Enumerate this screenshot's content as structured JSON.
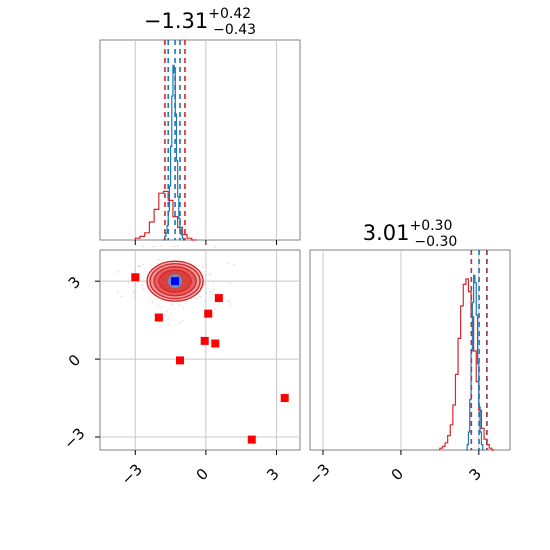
{
  "colors": {
    "blue_hist": "#1f77b4",
    "red": "#d62728",
    "marker_red": "#ff0000",
    "center_blue": "#0000ff",
    "contour_fill": "#e34a4a",
    "grid": "#c8c8c8",
    "frame": "#808080"
  },
  "chart_data": [
    {
      "type": "histogram",
      "panel": "top-left marginal",
      "title": {
        "value": "−1.31",
        "sup": "+0.42",
        "sub": "−0.43"
      },
      "xlim": [
        -4.5,
        4.0
      ],
      "xticks": [
        -3,
        0,
        3
      ],
      "xtick_labels": [
        "−3",
        "0",
        "3"
      ],
      "show_tick_labels": false,
      "grid": true,
      "quantile_lines_blue": [
        -1.6,
        -1.31,
        -1.1
      ],
      "quantile_lines_red": [
        -1.74,
        -0.89
      ],
      "blue_histogram": {
        "bin_start": -1.8,
        "bin_width": 0.05,
        "counts": [
          0,
          0.02,
          0.04,
          0.08,
          0.16,
          0.3,
          0.52,
          0.8,
          0.97,
          0.93,
          0.7,
          0.44,
          0.24,
          0.12,
          0.06,
          0.03,
          0.01,
          0
        ]
      },
      "red_histogram": {
        "bin_start": -3.0,
        "bin_width": 0.2,
        "counts": [
          0.01,
          0.02,
          0.04,
          0.1,
          0.17,
          0.26,
          0.27,
          0.22,
          0.13,
          0.07,
          0.03,
          0.01,
          0
        ]
      }
    },
    {
      "type": "scatter",
      "panel": "bottom-left 2D",
      "xlim": [
        -4.5,
        4.0
      ],
      "ylim": [
        -3.5,
        4.2
      ],
      "xticks": [
        -3,
        0,
        3
      ],
      "yticks": [
        -3,
        0,
        3
      ],
      "xtick_labels": [
        "−3",
        "0",
        "3"
      ],
      "ytick_labels": [
        "−3",
        "0",
        "3"
      ],
      "grid": true,
      "contour_center": {
        "x": -1.31,
        "y": 3.0
      },
      "red_points": [
        {
          "x": -3.0,
          "y": 3.15
        },
        {
          "x": -2.0,
          "y": 1.6
        },
        {
          "x": -1.1,
          "y": -0.05
        },
        {
          "x": -0.05,
          "y": 0.7
        },
        {
          "x": 0.1,
          "y": 1.75
        },
        {
          "x": 0.4,
          "y": 0.6
        },
        {
          "x": 0.55,
          "y": 2.35
        },
        {
          "x": 1.95,
          "y": -3.1
        },
        {
          "x": 3.35,
          "y": -1.5
        }
      ]
    },
    {
      "type": "histogram",
      "panel": "bottom-right marginal",
      "title": {
        "value": "3.01",
        "sup": "+0.30",
        "sub": "−0.30"
      },
      "xlim": [
        -3.5,
        4.2
      ],
      "xticks": [
        -3,
        0,
        3
      ],
      "xtick_labels": [
        "−3",
        "0",
        "3"
      ],
      "grid": true,
      "quantile_lines_blue": [
        2.71,
        3.01,
        3.31
      ],
      "quantile_lines_red": [
        2.71,
        3.31
      ],
      "blue_histogram": {
        "bin_start": 2.5,
        "bin_width": 0.05,
        "counts": [
          0,
          0.03,
          0.1,
          0.28,
          0.55,
          0.82,
          0.97,
          0.93,
          0.75,
          0.48,
          0.24,
          0.1,
          0.03,
          0
        ]
      },
      "red_histogram": {
        "bin_start": 1.5,
        "bin_width": 0.1,
        "counts": [
          0.01,
          0.02,
          0.04,
          0.08,
          0.14,
          0.25,
          0.42,
          0.62,
          0.8,
          0.92,
          0.95,
          0.88,
          0.74,
          0.55,
          0.38,
          0.22,
          0.12,
          0.06,
          0.03,
          0.01,
          0
        ]
      }
    }
  ]
}
